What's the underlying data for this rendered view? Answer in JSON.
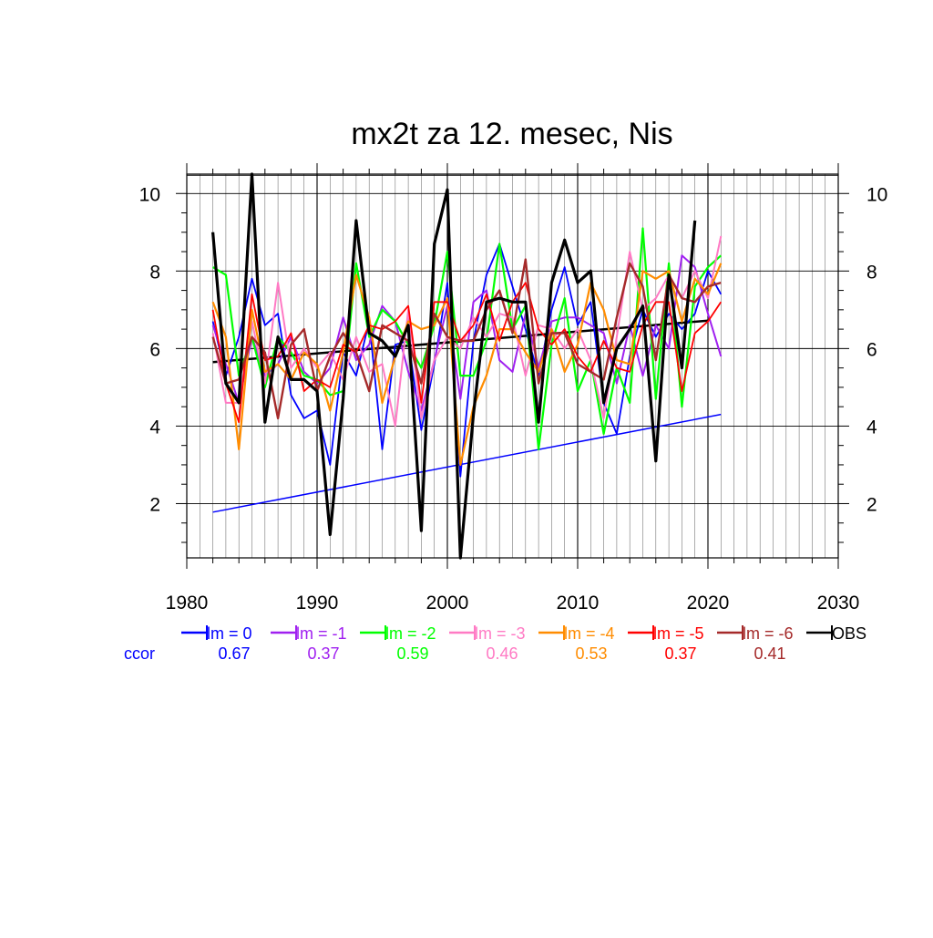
{
  "chart_data": {
    "type": "line",
    "title": "mx2t za 12. mesec, Nis",
    "xlabel": "",
    "ylabel": "",
    "xlim": [
      1980,
      2030
    ],
    "ylim": [
      0.6,
      10.5
    ],
    "x_ticks": [
      1980,
      1990,
      2000,
      2010,
      2020,
      2030
    ],
    "y_ticks": [
      2,
      4,
      6,
      8,
      10
    ],
    "grid": true,
    "legend_position": "bottom",
    "ccor_label": "ccor",
    "x": [
      1982,
      1983,
      1984,
      1985,
      1986,
      1987,
      1988,
      1989,
      1990,
      1991,
      1992,
      1993,
      1994,
      1995,
      1996,
      1997,
      1998,
      1999,
      2000,
      2001,
      2002,
      2003,
      2004,
      2005,
      2006,
      2007,
      2008,
      2009,
      2010,
      2011,
      2012,
      2013,
      2014,
      2015,
      2016,
      2017,
      2018,
      2019,
      2020,
      2021
    ],
    "series": [
      {
        "name": "lm = 0",
        "ccor": "0.67",
        "color": "#0000ff",
        "width": 1.8,
        "values": [
          6.7,
          5.3,
          6.3,
          7.8,
          6.6,
          6.9,
          4.8,
          4.2,
          4.4,
          3.0,
          5.9,
          5.3,
          6.7,
          3.4,
          6.1,
          6.2,
          3.9,
          5.6,
          7.7,
          2.7,
          6.2,
          7.9,
          8.7,
          7.6,
          6.5,
          5.3,
          7.0,
          8.1,
          6.6,
          7.2,
          4.6,
          3.8,
          5.8,
          7.0,
          6.3,
          6.9,
          6.5,
          6.9,
          8.0,
          7.4
        ]
      },
      {
        "name": "lm = -1",
        "ccor": "0.37",
        "color": "#a020f0",
        "width": 2,
        "values": [
          6.6,
          5.6,
          4.6,
          6.3,
          5.3,
          5.6,
          6.3,
          5.4,
          5.1,
          5.5,
          6.8,
          5.7,
          6.1,
          7.1,
          6.7,
          5.4,
          4.4,
          5.7,
          7.1,
          4.7,
          7.2,
          7.5,
          5.7,
          5.4,
          6.9,
          5.5,
          6.7,
          6.8,
          6.8,
          6.6,
          6.4,
          5.1,
          6.6,
          5.3,
          6.6,
          6.0,
          8.4,
          8.1,
          6.9,
          5.8
        ]
      },
      {
        "name": "lm = -2",
        "ccor": "0.59",
        "color": "#00ff00",
        "width": 2.2,
        "values": [
          8.1,
          7.9,
          5.3,
          6.3,
          5.0,
          6.3,
          5.9,
          5.3,
          5.2,
          4.8,
          4.9,
          8.2,
          6.3,
          7.0,
          6.7,
          6.1,
          5.5,
          6.6,
          8.5,
          5.3,
          5.3,
          6.2,
          8.7,
          6.5,
          7.1,
          3.4,
          6.1,
          7.3,
          4.9,
          5.7,
          3.8,
          5.5,
          4.6,
          9.1,
          4.7,
          8.2,
          4.5,
          7.6,
          8.1,
          8.4
        ]
      },
      {
        "name": "lm = -3",
        "ccor": "0.46",
        "color": "#ff7ac4",
        "width": 2,
        "values": [
          6.4,
          4.6,
          4.6,
          6.7,
          5.1,
          7.7,
          5.5,
          6.0,
          5.5,
          5.9,
          5.2,
          6.3,
          5.4,
          5.6,
          4.0,
          7.0,
          4.2,
          5.7,
          6.3,
          6.0,
          6.8,
          6.3,
          6.9,
          6.8,
          5.3,
          6.6,
          6.5,
          6.0,
          6.5,
          5.7,
          4.2,
          6.3,
          8.5,
          7.0,
          7.3,
          7.9,
          7.3,
          8.0,
          7.3,
          8.9
        ]
      },
      {
        "name": "lm = -4",
        "ccor": "0.53",
        "color": "#ff8c00",
        "width": 2.2,
        "values": [
          7.2,
          6.3,
          3.4,
          7.0,
          5.4,
          5.6,
          5.2,
          5.9,
          5.6,
          4.4,
          5.9,
          7.9,
          6.8,
          4.6,
          5.8,
          6.7,
          6.5,
          6.6,
          7.3,
          3.0,
          4.5,
          5.3,
          6.5,
          6.5,
          5.9,
          5.4,
          6.5,
          5.4,
          6.1,
          7.7,
          7.0,
          5.7,
          5.6,
          8.0,
          7.8,
          8.0,
          6.7,
          7.8,
          7.4,
          8.2
        ]
      },
      {
        "name": "lm = -5",
        "ccor": "0.37",
        "color": "#ff0000",
        "width": 1.8,
        "values": [
          7.0,
          5.1,
          4.1,
          7.4,
          5.7,
          5.8,
          6.4,
          4.9,
          5.2,
          5.0,
          6.1,
          5.9,
          6.6,
          6.5,
          6.7,
          7.1,
          4.6,
          7.2,
          7.2,
          6.2,
          6.6,
          7.4,
          6.2,
          7.2,
          7.7,
          6.5,
          6.1,
          6.5,
          5.8,
          5.4,
          6.2,
          5.5,
          5.4,
          6.6,
          7.2,
          7.2,
          4.9,
          6.4,
          6.7,
          7.2
        ]
      },
      {
        "name": "lm = -6",
        "ccor": "0.41",
        "color": "#a52a2a",
        "width": 2.4,
        "values": [
          6.3,
          5.1,
          5.2,
          6.3,
          5.9,
          4.2,
          6.1,
          6.5,
          4.9,
          5.8,
          6.4,
          5.9,
          4.9,
          6.6,
          6.4,
          6.2,
          5.1,
          6.9,
          6.3,
          6.2,
          6.2,
          7.0,
          7.5,
          6.4,
          8.3,
          5.1,
          6.4,
          6.4,
          5.6,
          5.4,
          5.2,
          6.8,
          8.2,
          7.6,
          5.7,
          7.9,
          7.3,
          7.2,
          7.6,
          7.7
        ]
      },
      {
        "name": "OBS",
        "ccor": "",
        "color": "#000000",
        "width": 3.2,
        "values": [
          9.0,
          5.1,
          4.6,
          10.5,
          4.1,
          6.3,
          5.2,
          5.2,
          4.9,
          1.2,
          4.7,
          9.3,
          6.4,
          6.2,
          5.8,
          6.6,
          1.3,
          8.7,
          10.1,
          0.6,
          4.3,
          7.2,
          7.3,
          7.2,
          7.2,
          4.1,
          7.7,
          8.8,
          7.7,
          8.0,
          4.6,
          6.0,
          6.5,
          7.1,
          3.1,
          7.9,
          5.5,
          9.3,
          null,
          null
        ]
      }
    ],
    "trend_lines": [
      {
        "color": "#000000",
        "width": 2.5,
        "x": [
          1982,
          2020
        ],
        "values": [
          5.65,
          6.72
        ]
      },
      {
        "color": "#0000ff",
        "width": 1.5,
        "x": [
          1982,
          2021
        ],
        "values": [
          1.78,
          4.3
        ]
      }
    ]
  }
}
